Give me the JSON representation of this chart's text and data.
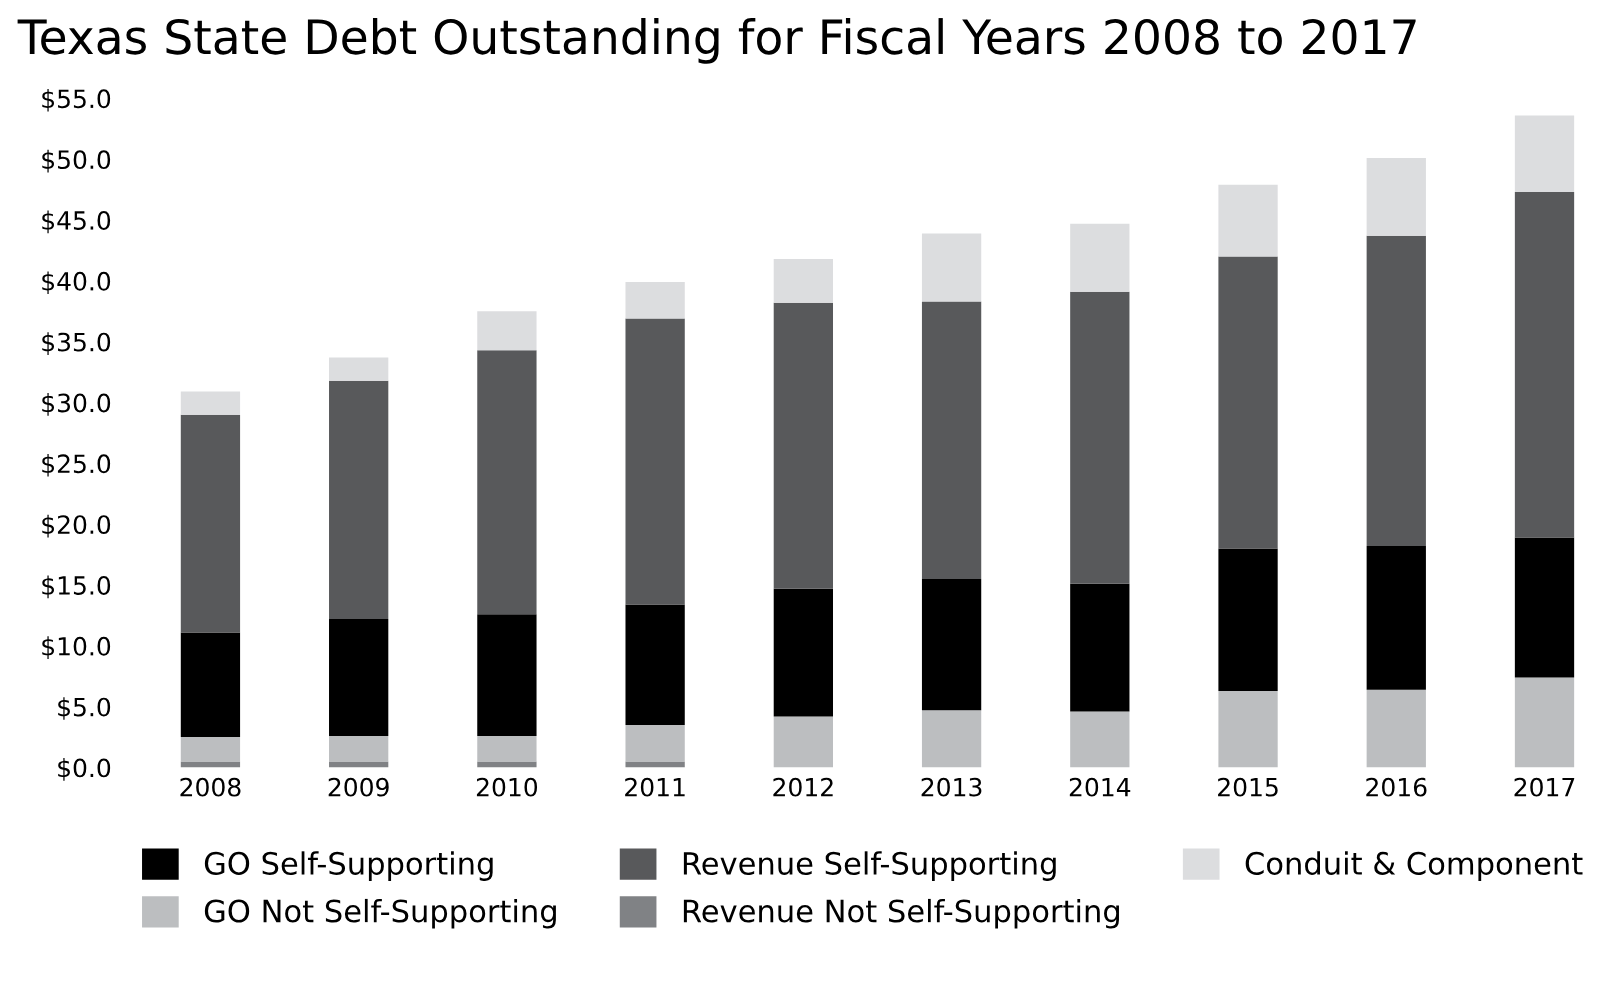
{
  "chart_data": {
    "type": "bar",
    "title": "Texas State Debt Outstanding for Fiscal Years 2008 to 2017",
    "categories": [
      "2008",
      "2009",
      "2010",
      "2011",
      "2012",
      "2013",
      "2014",
      "2015",
      "2016",
      "2017"
    ],
    "stacked": true,
    "series": [
      {
        "name": "Revenue Not Self-Supporting",
        "color": "#808285",
        "values": [
          0.5,
          0.5,
          0.5,
          0.5,
          0,
          0,
          0,
          0,
          0,
          0
        ]
      },
      {
        "name": "GO Not Self-Supporting",
        "color": "#bcbec0",
        "values": [
          2.0,
          2.1,
          2.1,
          3.0,
          4.2,
          4.7,
          4.6,
          6.3,
          6.4,
          7.4
        ]
      },
      {
        "name": "GO Self-Supporting",
        "color": "#000000",
        "values": [
          8.6,
          9.6,
          10.0,
          9.9,
          10.5,
          10.8,
          10.5,
          11.7,
          11.8,
          11.5
        ]
      },
      {
        "name": "Revenue Self-Supporting",
        "color": "#58595b",
        "values": [
          17.9,
          19.6,
          21.7,
          23.5,
          23.5,
          22.8,
          24.0,
          24.0,
          25.5,
          28.4
        ]
      },
      {
        "name": "Conduit & Component",
        "color": "#dcdddf",
        "values": [
          1.9,
          1.9,
          3.2,
          3.0,
          3.6,
          5.6,
          5.6,
          5.9,
          6.4,
          6.3
        ]
      }
    ],
    "ylim": [
      0,
      55
    ],
    "yticks": [
      {
        "value": 0,
        "label": "$0.0"
      },
      {
        "value": 5,
        "label": "$5.0"
      },
      {
        "value": 10,
        "label": "$10.0"
      },
      {
        "value": 15,
        "label": "$15.0"
      },
      {
        "value": 20,
        "label": "$20.0"
      },
      {
        "value": 25,
        "label": "$25.0"
      },
      {
        "value": 30,
        "label": "$30.0"
      },
      {
        "value": 35,
        "label": "$35.0"
      },
      {
        "value": 40,
        "label": "$40.0"
      },
      {
        "value": 45,
        "label": "$45.0"
      },
      {
        "value": 50,
        "label": "$50.0"
      },
      {
        "value": 55,
        "label": "$55.0"
      }
    ],
    "grid": false,
    "legend": "bottom"
  }
}
